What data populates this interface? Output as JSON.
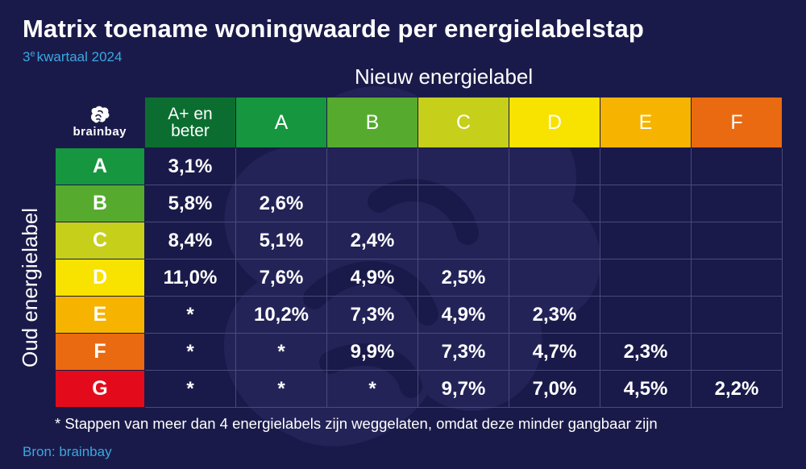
{
  "title": "Matrix toename woningwaarde per energielabelstap",
  "subtitle": {
    "ordinal": "3",
    "suffix": "e",
    "text": "kwartaal 2024"
  },
  "logo_text": "brainbay",
  "footnote": "* Stappen van meer dan 4 energielabels zijn weggelaten, omdat deze minder gangbaar zijn",
  "source": "Bron: brainbay",
  "icons": {
    "logo": "brain-icon",
    "watermark": "brain-watermark-icon"
  },
  "chart_data": {
    "type": "table",
    "column_axis_label": "Nieuw energielabel",
    "row_axis_label": "Oud energielabel",
    "columns": [
      {
        "label": "A+ en beter",
        "lines": [
          "A+ en",
          "beter"
        ],
        "color": "#0b6e30"
      },
      {
        "label": "A",
        "color": "#16963e"
      },
      {
        "label": "B",
        "color": "#56ab2f"
      },
      {
        "label": "C",
        "color": "#c6cf1a"
      },
      {
        "label": "D",
        "color": "#f7e200"
      },
      {
        "label": "E",
        "color": "#f6b400"
      },
      {
        "label": "F",
        "color": "#ea6a12"
      }
    ],
    "rows": [
      {
        "label": "A",
        "color": "#16963e",
        "values": [
          "3,1%",
          "",
          "",
          "",
          "",
          "",
          ""
        ]
      },
      {
        "label": "B",
        "color": "#56ab2f",
        "values": [
          "5,8%",
          "2,6%",
          "",
          "",
          "",
          "",
          ""
        ]
      },
      {
        "label": "C",
        "color": "#c6cf1a",
        "values": [
          "8,4%",
          "5,1%",
          "2,4%",
          "",
          "",
          "",
          ""
        ]
      },
      {
        "label": "D",
        "color": "#f7e200",
        "values": [
          "11,0%",
          "7,6%",
          "4,9%",
          "2,5%",
          "",
          "",
          ""
        ]
      },
      {
        "label": "E",
        "color": "#f6b400",
        "values": [
          "*",
          "10,2%",
          "7,3%",
          "4,9%",
          "2,3%",
          "",
          ""
        ]
      },
      {
        "label": "F",
        "color": "#ea6a12",
        "values": [
          "*",
          "*",
          "9,9%",
          "7,3%",
          "4,7%",
          "2,3%",
          ""
        ]
      },
      {
        "label": "G",
        "color": "#e30b1b",
        "values": [
          "*",
          "*",
          "*",
          "9,7%",
          "7,0%",
          "4,5%",
          "2,2%"
        ]
      }
    ]
  }
}
